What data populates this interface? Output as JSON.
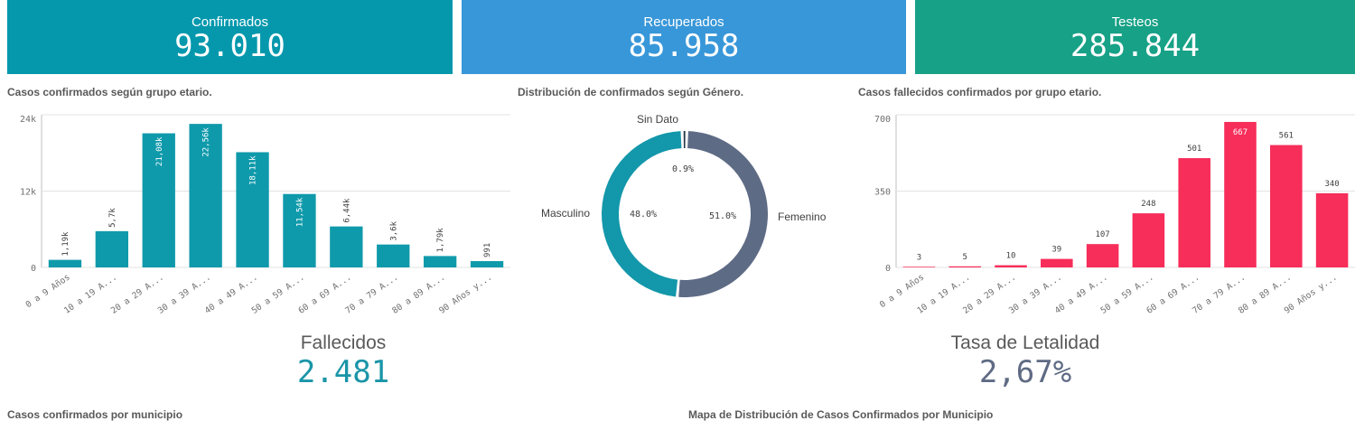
{
  "kpis": [
    {
      "label": "Confirmados",
      "value": "93.010",
      "color": "#0598ad"
    },
    {
      "label": "Recuperados",
      "value": "85.958",
      "color": "#3897d9"
    },
    {
      "label": "Testeos",
      "value": "285.844",
      "color": "#17a187"
    }
  ],
  "fallecidos": {
    "label": "Fallecidos",
    "value": "2.481",
    "color": "#1a95a8"
  },
  "letalidad": {
    "label": "Tasa de Letalidad",
    "value": "2,67%",
    "color": "#5f6b84"
  },
  "bottom_titles": [
    "Casos confirmados por municipio",
    "Mapa de Distribución de Casos Confirmados por Municipio"
  ],
  "chart_data": [
    {
      "type": "bar",
      "title": "Casos confirmados según grupo etario.",
      "categories": [
        "0 a 9 Años",
        "10 a 19 A...",
        "20 a 29 A...",
        "30 a 39 A...",
        "40 a 49 A...",
        "50 a 59 A...",
        "60 a 69 A...",
        "70 a 79 A...",
        "80 a 89 A...",
        "90 Años y..."
      ],
      "values": [
        1190,
        5700,
        21080,
        22560,
        18110,
        11540,
        6440,
        3600,
        1790,
        991
      ],
      "labels": [
        "1,19k",
        "5,7k",
        "21,08k",
        "22,56k",
        "18,11k",
        "11,54k",
        "6,44k",
        "3,6k",
        "1,79k",
        "991"
      ],
      "yticks": [
        {
          "value": 0,
          "label": "0"
        },
        {
          "value": 12000,
          "label": "12k"
        },
        {
          "value": 24000,
          "label": "24k"
        }
      ],
      "ylim": [
        0,
        24000
      ],
      "color": "#0f9aab",
      "grid": true
    },
    {
      "type": "pie",
      "title": "Distribución de confirmados según Género.",
      "slices": [
        {
          "name": "Femenino",
          "value": 51.0,
          "label": "51.0%",
          "color": "#5e6b85"
        },
        {
          "name": "Masculino",
          "value": 48.0,
          "label": "48.0%",
          "color": "#1397aa"
        },
        {
          "name": "Sin Dato",
          "value": 0.9,
          "label": "0.9%",
          "color": "#2a3a4a"
        }
      ]
    },
    {
      "type": "bar",
      "title": "Casos fallecidos confirmados por grupo etario.",
      "categories": [
        "0 a 9 Años",
        "10 a 19 A...",
        "20 a 29 A...",
        "30 a 39 A...",
        "40 a 49 A...",
        "50 a 59 A...",
        "60 a 69 A...",
        "70 a 79 A...",
        "80 a 89 A...",
        "90 Años y..."
      ],
      "values": [
        3,
        5,
        10,
        39,
        107,
        248,
        501,
        667,
        561,
        340
      ],
      "labels": [
        "3",
        "5",
        "10",
        "39",
        "107",
        "248",
        "501",
        "667",
        "561",
        "340"
      ],
      "yticks": [
        {
          "value": 0,
          "label": "0"
        },
        {
          "value": 350,
          "label": "350"
        },
        {
          "value": 700,
          "label": "700"
        }
      ],
      "ylim": [
        0,
        700
      ],
      "color": "#f72d5a",
      "grid": true
    }
  ]
}
